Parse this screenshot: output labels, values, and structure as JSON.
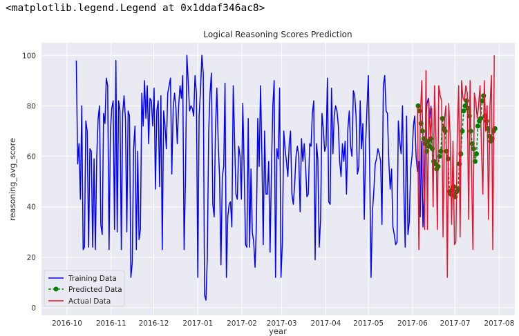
{
  "output_text": "<matplotlib.legend.Legend at 0x1ddaf346ac8>",
  "chart_data": {
    "type": "line",
    "title": "Logical Reasoning Scores Prediction",
    "xlabel": "year",
    "ylabel": "reasoning_avg_score",
    "ylim": [
      -3,
      105
    ],
    "yticks": [
      0,
      20,
      40,
      60,
      80,
      100
    ],
    "xlim_days": [
      -18,
      315
    ],
    "x_origin_date": "2016-10-01",
    "xticks": [
      {
        "label": "2016-10",
        "day": 0
      },
      {
        "label": "2016-11",
        "day": 31
      },
      {
        "label": "2016-12",
        "day": 61
      },
      {
        "label": "2017-01",
        "day": 92
      },
      {
        "label": "2017-02",
        "day": 123
      },
      {
        "label": "2017-03",
        "day": 151
      },
      {
        "label": "2017-04",
        "day": 182
      },
      {
        "label": "2017-05",
        "day": 212
      },
      {
        "label": "2017-06",
        "day": 243
      },
      {
        "label": "2017-07",
        "day": 273
      },
      {
        "label": "2017-08",
        "day": 304
      }
    ],
    "grid": true,
    "legend_position": "lower-left",
    "series": [
      {
        "name": "Training Data",
        "color": "#0000ff",
        "style": "solid",
        "x_start_day": 6.5,
        "x_step_days": 0.96,
        "values": [
          98,
          57,
          65,
          43,
          80,
          23,
          24,
          74,
          70,
          24,
          63,
          62,
          24,
          59,
          23,
          60,
          75,
          80,
          33,
          29,
          77,
          73,
          91,
          88,
          23,
          70,
          79,
          82,
          31,
          98,
          30,
          82,
          78,
          23,
          77,
          84,
          75,
          30,
          78,
          76,
          12,
          18,
          63,
          72,
          23,
          62,
          27,
          31,
          85,
          72,
          90,
          75,
          88,
          65,
          83,
          82,
          72,
          87,
          47,
          78,
          82,
          48,
          84,
          23,
          78,
          72,
          63,
          85,
          88,
          91,
          53,
          79,
          85,
          79,
          65,
          80,
          88,
          83,
          92,
          23,
          51,
          100,
          90,
          78,
          80,
          79,
          76,
          92,
          85,
          12,
          76,
          86,
          100,
          93,
          5,
          3,
          20,
          70,
          85,
          93,
          41,
          36,
          71,
          87,
          65,
          52,
          17,
          52,
          56,
          89,
          12,
          36,
          41,
          42,
          32,
          88,
          66,
          45,
          43,
          64,
          60,
          43,
          81,
          55,
          25,
          24,
          75,
          24,
          55,
          30,
          26,
          16,
          34,
          75,
          56,
          88,
          60,
          25,
          70,
          45,
          45,
          58,
          22,
          55,
          80,
          90,
          12,
          63,
          59,
          87,
          12,
          26,
          70,
          63,
          58,
          52,
          65,
          70,
          45,
          41,
          49,
          60,
          64,
          60,
          38,
          67,
          58,
          65,
          56,
          44,
          45,
          65,
          64,
          77,
          82,
          19,
          65,
          59,
          24,
          35,
          77,
          71,
          62,
          64,
          91,
          42,
          41,
          87,
          61,
          76,
          80,
          78,
          72,
          58,
          52,
          65,
          58,
          66,
          45,
          71,
          78,
          64,
          60,
          86,
          84,
          76,
          53,
          56,
          82,
          63,
          73,
          35,
          65,
          79,
          92,
          54,
          12,
          38,
          46,
          57,
          59,
          63,
          61,
          58,
          33,
          88,
          92,
          78,
          77,
          58,
          47,
          55,
          32,
          29,
          25,
          26,
          74,
          66,
          61,
          80,
          48,
          24,
          76,
          29,
          34,
          55,
          60,
          72,
          76,
          60,
          54,
          58,
          36,
          66,
          32,
          48,
          73,
          81,
          83,
          75,
          80
        ]
      },
      {
        "name": "Predicted Data",
        "color": "#008000",
        "style": "dashed",
        "marker": "circle",
        "x_start_day": 247,
        "x_step_days": 1.0,
        "values": [
          80,
          78,
          73,
          70,
          67,
          65,
          62,
          66,
          64,
          67,
          63,
          58,
          57,
          55,
          56,
          60,
          62,
          75,
          71,
          70,
          62,
          59,
          46,
          45,
          47,
          48,
          44,
          46,
          47,
          57,
          61,
          70,
          78,
          80,
          82,
          79,
          76,
          70,
          65,
          63,
          58,
          61,
          72,
          74,
          75,
          82,
          84,
          76,
          74,
          71,
          68,
          66,
          67,
          70,
          71
        ]
      },
      {
        "name": "Actual Data",
        "color": "#e8102a",
        "style": "solid",
        "x_start_day": 246.5,
        "x_step_days": 1.0,
        "values": [
          80,
          23,
          75,
          90,
          60,
          31,
          94,
          31,
          82,
          67,
          79,
          40,
          88,
          67,
          31,
          88,
          84,
          82,
          28,
          75,
          80,
          12,
          81,
          68,
          33,
          66,
          25,
          26,
          68,
          88,
          28,
          90,
          83,
          82,
          88,
          85,
          35,
          90,
          55,
          23,
          85,
          82,
          75,
          80,
          88,
          63,
          45,
          90,
          70,
          80,
          35,
          80,
          92,
          23,
          100
        ]
      }
    ]
  }
}
